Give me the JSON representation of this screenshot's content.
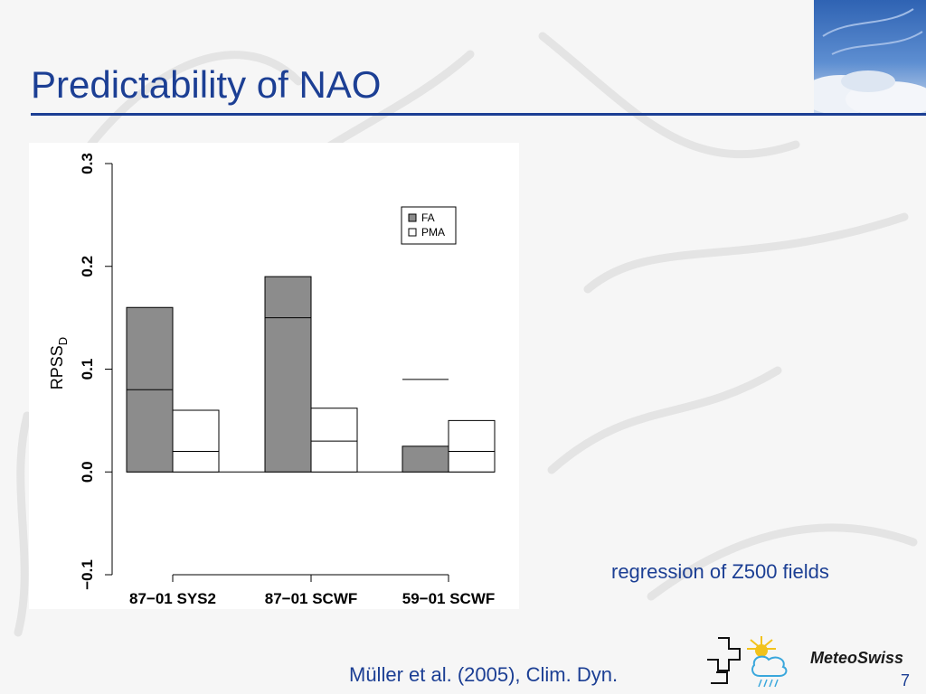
{
  "slide": {
    "title": "Predictability of NAO",
    "annotation": "regression of Z500 fields",
    "citation": "Müller et al. (2005), Clim. Dyn.",
    "brand": "MeteoSwiss",
    "page_number": "7"
  },
  "colors": {
    "title": "#1c3f94",
    "rule": "#1c3f94",
    "fa_fill": "#8c8c8c",
    "pma_fill": "#ffffff"
  },
  "chart_data": {
    "type": "bar",
    "categories": [
      "87−01 SYS2",
      "87−01 SCWF",
      "59−01 SCWF"
    ],
    "ylabel_main": "RPSS",
    "ylabel_sub": "D",
    "ylim": [
      -0.1,
      0.3
    ],
    "yticks": [
      -0.1,
      0.0,
      0.1,
      0.2,
      0.3
    ],
    "ytick_labels": [
      "−0.1",
      "0.0",
      "0.1",
      "0.2",
      "0.3"
    ],
    "grid": false,
    "legend_position": "top-right",
    "series": [
      {
        "name": "FA",
        "values": [
          0.16,
          0.19,
          0.025
        ],
        "inner_lines": [
          0.08,
          0.15,
          0.09
        ]
      },
      {
        "name": "PMA",
        "values": [
          0.06,
          0.062,
          0.05
        ],
        "inner_lines": [
          0.02,
          0.03,
          0.02
        ]
      }
    ]
  }
}
